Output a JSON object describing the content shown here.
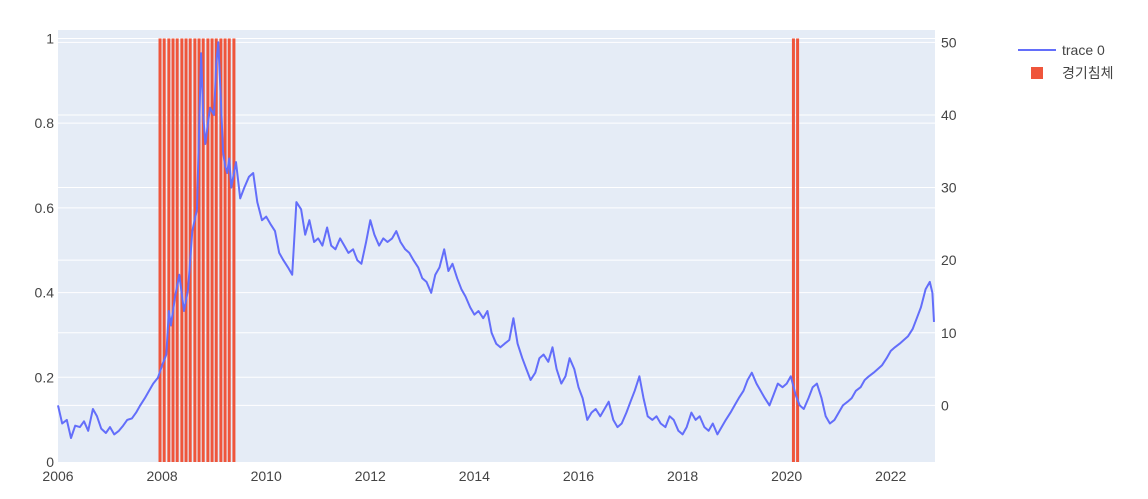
{
  "chart_data": {
    "type": "line",
    "grid": true,
    "legend_position": "top-right",
    "legend": [
      {
        "name": "trace 0",
        "kind": "line",
        "color": "#636efa"
      },
      {
        "name": "경기침체",
        "kind": "bar",
        "color": "#ef553b"
      }
    ],
    "x_ticks": [
      "2006",
      "2008",
      "2010",
      "2012",
      "2014",
      "2016",
      "2018",
      "2020",
      "2022"
    ],
    "xlim": [
      2006.0,
      2022.85
    ],
    "y_left": {
      "range": [
        0,
        1.02
      ],
      "ticks": [
        0,
        0.2,
        0.4,
        0.6,
        0.8,
        1
      ],
      "tick_labels": [
        "0",
        "0.2",
        "0.4",
        "0.6",
        "0.8",
        "1"
      ]
    },
    "y_right": {
      "range": [
        -7.8,
        51.7
      ],
      "ticks": [
        0,
        10,
        20,
        30,
        40,
        50
      ],
      "tick_labels": [
        "0",
        "10",
        "20",
        "30",
        "40",
        "50"
      ]
    },
    "recession_bars": {
      "series": "경기침체",
      "value": 1,
      "x": [
        2007.96,
        2008.04,
        2008.13,
        2008.21,
        2008.29,
        2008.38,
        2008.46,
        2008.54,
        2008.63,
        2008.71,
        2008.79,
        2008.88,
        2008.96,
        2009.04,
        2009.13,
        2009.21,
        2009.29,
        2009.38,
        2020.13,
        2020.21
      ]
    },
    "series": [
      {
        "name": "trace 0",
        "axis": "right",
        "color": "#636efa",
        "points": [
          [
            2006.0,
            0.0
          ],
          [
            2006.08,
            -2.5
          ],
          [
            2006.17,
            -2.0
          ],
          [
            2006.25,
            -4.5
          ],
          [
            2006.33,
            -2.8
          ],
          [
            2006.42,
            -3.0
          ],
          [
            2006.5,
            -2.2
          ],
          [
            2006.58,
            -3.5
          ],
          [
            2006.67,
            -0.5
          ],
          [
            2006.75,
            -1.5
          ],
          [
            2006.83,
            -3.2
          ],
          [
            2006.92,
            -3.8
          ],
          [
            2007.0,
            -3.0
          ],
          [
            2007.08,
            -4.0
          ],
          [
            2007.17,
            -3.5
          ],
          [
            2007.25,
            -2.8
          ],
          [
            2007.33,
            -2.0
          ],
          [
            2007.42,
            -1.8
          ],
          [
            2007.5,
            -1.0
          ],
          [
            2007.58,
            0.0
          ],
          [
            2007.67,
            1.0
          ],
          [
            2007.75,
            2.0
          ],
          [
            2007.83,
            3.0
          ],
          [
            2007.92,
            3.8
          ],
          [
            2008.0,
            5.5
          ],
          [
            2008.08,
            7.0
          ],
          [
            2008.13,
            13.0
          ],
          [
            2008.17,
            11.0
          ],
          [
            2008.25,
            15.0
          ],
          [
            2008.33,
            18.0
          ],
          [
            2008.42,
            13.0
          ],
          [
            2008.5,
            16.0
          ],
          [
            2008.58,
            24.0
          ],
          [
            2008.67,
            27.0
          ],
          [
            2008.75,
            48.5
          ],
          [
            2008.79,
            40.0
          ],
          [
            2008.83,
            36.0
          ],
          [
            2008.92,
            41.0
          ],
          [
            2009.0,
            40.0
          ],
          [
            2009.04,
            47.0
          ],
          [
            2009.08,
            50.0
          ],
          [
            2009.13,
            42.0
          ],
          [
            2009.17,
            35.0
          ],
          [
            2009.21,
            33.0
          ],
          [
            2009.25,
            32.0
          ],
          [
            2009.29,
            34.0
          ],
          [
            2009.33,
            30.0
          ],
          [
            2009.42,
            33.5
          ],
          [
            2009.5,
            28.5
          ],
          [
            2009.58,
            30.0
          ],
          [
            2009.67,
            31.5
          ],
          [
            2009.75,
            32.0
          ],
          [
            2009.83,
            28.0
          ],
          [
            2009.92,
            25.5
          ],
          [
            2010.0,
            26.0
          ],
          [
            2010.08,
            25.0
          ],
          [
            2010.17,
            24.0
          ],
          [
            2010.25,
            21.0
          ],
          [
            2010.33,
            20.0
          ],
          [
            2010.42,
            19.0
          ],
          [
            2010.5,
            18.0
          ],
          [
            2010.58,
            28.0
          ],
          [
            2010.67,
            27.0
          ],
          [
            2010.75,
            23.5
          ],
          [
            2010.83,
            25.5
          ],
          [
            2010.92,
            22.5
          ],
          [
            2011.0,
            23.0
          ],
          [
            2011.08,
            22.0
          ],
          [
            2011.17,
            24.5
          ],
          [
            2011.25,
            22.0
          ],
          [
            2011.33,
            21.5
          ],
          [
            2011.42,
            23.0
          ],
          [
            2011.5,
            22.0
          ],
          [
            2011.58,
            21.0
          ],
          [
            2011.67,
            21.5
          ],
          [
            2011.75,
            20.0
          ],
          [
            2011.83,
            19.5
          ],
          [
            2011.92,
            22.5
          ],
          [
            2012.0,
            25.5
          ],
          [
            2012.08,
            23.5
          ],
          [
            2012.17,
            22.0
          ],
          [
            2012.25,
            23.0
          ],
          [
            2012.33,
            22.5
          ],
          [
            2012.42,
            23.0
          ],
          [
            2012.5,
            24.0
          ],
          [
            2012.58,
            22.5
          ],
          [
            2012.67,
            21.5
          ],
          [
            2012.75,
            21.0
          ],
          [
            2012.83,
            20.0
          ],
          [
            2012.92,
            19.0
          ],
          [
            2013.0,
            17.5
          ],
          [
            2013.08,
            17.0
          ],
          [
            2013.17,
            15.5
          ],
          [
            2013.25,
            18.0
          ],
          [
            2013.33,
            19.0
          ],
          [
            2013.42,
            21.5
          ],
          [
            2013.5,
            18.5
          ],
          [
            2013.58,
            19.5
          ],
          [
            2013.67,
            17.5
          ],
          [
            2013.75,
            16.0
          ],
          [
            2013.83,
            15.0
          ],
          [
            2013.92,
            13.5
          ],
          [
            2014.0,
            12.5
          ],
          [
            2014.08,
            13.0
          ],
          [
            2014.17,
            12.0
          ],
          [
            2014.25,
            13.0
          ],
          [
            2014.33,
            10.0
          ],
          [
            2014.42,
            8.5
          ],
          [
            2014.5,
            8.0
          ],
          [
            2014.58,
            8.5
          ],
          [
            2014.67,
            9.0
          ],
          [
            2014.75,
            12.0
          ],
          [
            2014.83,
            8.5
          ],
          [
            2014.92,
            6.5
          ],
          [
            2015.0,
            5.0
          ],
          [
            2015.08,
            3.5
          ],
          [
            2015.17,
            4.5
          ],
          [
            2015.25,
            6.5
          ],
          [
            2015.33,
            7.0
          ],
          [
            2015.42,
            6.0
          ],
          [
            2015.5,
            8.0
          ],
          [
            2015.58,
            5.0
          ],
          [
            2015.67,
            3.0
          ],
          [
            2015.75,
            4.0
          ],
          [
            2015.83,
            6.5
          ],
          [
            2015.92,
            5.0
          ],
          [
            2016.0,
            2.5
          ],
          [
            2016.08,
            1.0
          ],
          [
            2016.17,
            -2.0
          ],
          [
            2016.25,
            -1.0
          ],
          [
            2016.33,
            -0.5
          ],
          [
            2016.42,
            -1.5
          ],
          [
            2016.5,
            -0.5
          ],
          [
            2016.58,
            0.5
          ],
          [
            2016.67,
            -2.0
          ],
          [
            2016.75,
            -3.0
          ],
          [
            2016.83,
            -2.5
          ],
          [
            2016.92,
            -1.0
          ],
          [
            2017.0,
            0.5
          ],
          [
            2017.08,
            2.0
          ],
          [
            2017.17,
            4.0
          ],
          [
            2017.25,
            1.0
          ],
          [
            2017.33,
            -1.5
          ],
          [
            2017.42,
            -2.0
          ],
          [
            2017.5,
            -1.5
          ],
          [
            2017.58,
            -2.5
          ],
          [
            2017.67,
            -3.0
          ],
          [
            2017.75,
            -1.5
          ],
          [
            2017.83,
            -2.0
          ],
          [
            2017.92,
            -3.5
          ],
          [
            2018.0,
            -4.0
          ],
          [
            2018.08,
            -3.0
          ],
          [
            2018.17,
            -1.0
          ],
          [
            2018.25,
            -2.0
          ],
          [
            2018.33,
            -1.5
          ],
          [
            2018.42,
            -3.0
          ],
          [
            2018.5,
            -3.5
          ],
          [
            2018.58,
            -2.5
          ],
          [
            2018.67,
            -4.0
          ],
          [
            2018.75,
            -3.0
          ],
          [
            2018.83,
            -2.0
          ],
          [
            2018.92,
            -1.0
          ],
          [
            2019.0,
            0.0
          ],
          [
            2019.08,
            1.0
          ],
          [
            2019.17,
            2.0
          ],
          [
            2019.25,
            3.5
          ],
          [
            2019.33,
            4.5
          ],
          [
            2019.42,
            3.0
          ],
          [
            2019.5,
            2.0
          ],
          [
            2019.58,
            1.0
          ],
          [
            2019.67,
            0.0
          ],
          [
            2019.75,
            1.5
          ],
          [
            2019.83,
            3.0
          ],
          [
            2019.92,
            2.5
          ],
          [
            2020.0,
            3.0
          ],
          [
            2020.08,
            4.0
          ],
          [
            2020.17,
            1.5
          ],
          [
            2020.25,
            0.0
          ],
          [
            2020.33,
            -0.5
          ],
          [
            2020.42,
            1.0
          ],
          [
            2020.5,
            2.5
          ],
          [
            2020.58,
            3.0
          ],
          [
            2020.67,
            1.0
          ],
          [
            2020.75,
            -1.5
          ],
          [
            2020.83,
            -2.5
          ],
          [
            2020.92,
            -2.0
          ],
          [
            2021.0,
            -1.0
          ],
          [
            2021.08,
            0.0
          ],
          [
            2021.17,
            0.5
          ],
          [
            2021.25,
            1.0
          ],
          [
            2021.33,
            2.0
          ],
          [
            2021.42,
            2.5
          ],
          [
            2021.5,
            3.5
          ],
          [
            2021.58,
            4.0
          ],
          [
            2021.67,
            4.5
          ],
          [
            2021.75,
            5.0
          ],
          [
            2021.83,
            5.5
          ],
          [
            2021.92,
            6.5
          ],
          [
            2022.0,
            7.5
          ],
          [
            2022.08,
            8.0
          ],
          [
            2022.17,
            8.5
          ],
          [
            2022.25,
            9.0
          ],
          [
            2022.33,
            9.5
          ],
          [
            2022.42,
            10.5
          ],
          [
            2022.5,
            12.0
          ],
          [
            2022.58,
            13.5
          ],
          [
            2022.67,
            16.0
          ],
          [
            2022.75,
            17.0
          ],
          [
            2022.8,
            15.5
          ],
          [
            2022.83,
            11.5
          ]
        ]
      }
    ]
  }
}
